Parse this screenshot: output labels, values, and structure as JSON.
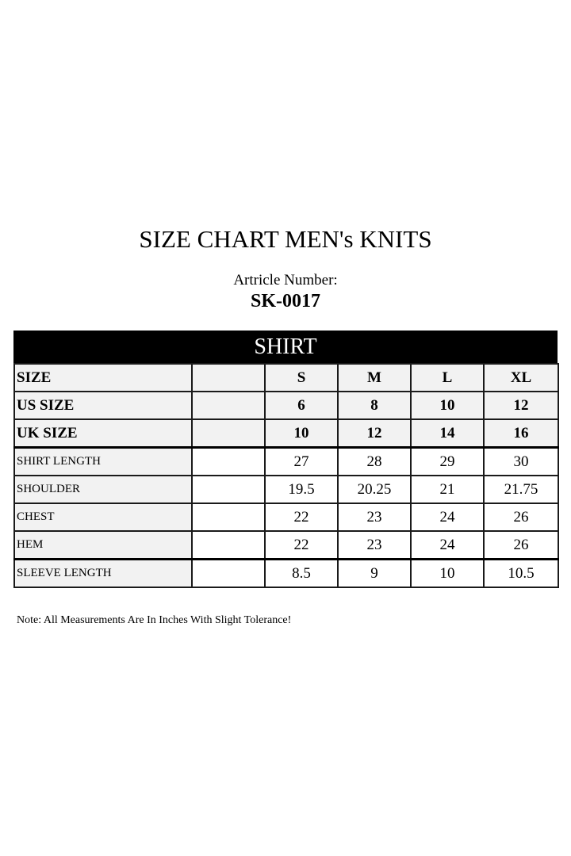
{
  "title": "SIZE CHART MEN's KNITS",
  "article_label": "Artricle Number:",
  "article_number": "SK-0017",
  "section": "SHIRT",
  "header_rows": [
    {
      "label": "SIZE",
      "values": [
        "S",
        "M",
        "L",
        "XL"
      ]
    },
    {
      "label": "US SIZE",
      "values": [
        "6",
        "8",
        "10",
        "12"
      ]
    },
    {
      "label": "UK SIZE",
      "values": [
        "10",
        "12",
        "14",
        "16"
      ]
    }
  ],
  "rows": [
    {
      "label": "SHIRT LENGTH",
      "values": [
        "27",
        "28",
        "29",
        "30"
      ]
    },
    {
      "label": "SHOULDER",
      "values": [
        "19.5",
        "20.25",
        "21",
        "21.75"
      ]
    },
    {
      "label": "CHEST",
      "values": [
        "22",
        "23",
        "24",
        "26"
      ]
    },
    {
      "label": "HEM",
      "values": [
        "22",
        "23",
        "24",
        "26"
      ]
    },
    {
      "label": "SLEEVE LENGTH",
      "values": [
        "8.5",
        "9",
        "10",
        "10.5"
      ]
    }
  ],
  "note": "Note: All Measurements Are In Inches With Slight Tolerance!"
}
